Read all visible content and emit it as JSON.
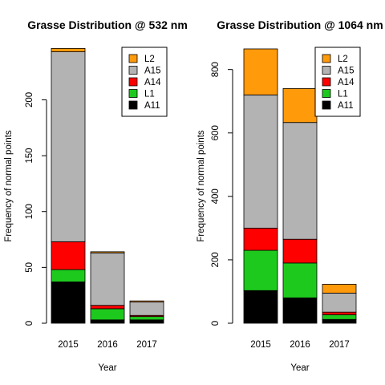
{
  "chart_data": [
    {
      "type": "bar",
      "stacked": true,
      "title": "Grasse Distribution @ 532 nm",
      "xlabel": "Year",
      "ylabel": "Frequency of normal points",
      "categories": [
        "2015",
        "2016",
        "2017"
      ],
      "ylim": [
        0,
        247
      ],
      "yticks": [
        0,
        50,
        100,
        150,
        200
      ],
      "legend_position": "top-right",
      "series": [
        {
          "name": "A11",
          "color": "#000000",
          "values": [
            37,
            3,
            3
          ]
        },
        {
          "name": "L1",
          "color": "#1ec91e",
          "values": [
            11,
            10,
            3
          ]
        },
        {
          "name": "A14",
          "color": "#ff0000",
          "values": [
            25,
            3,
            1
          ]
        },
        {
          "name": "A15",
          "color": "#b3b3b3",
          "values": [
            170,
            47,
            12
          ]
        },
        {
          "name": "L2",
          "color": "#ff9a0a",
          "values": [
            3,
            1,
            1
          ]
        }
      ]
    },
    {
      "type": "bar",
      "stacked": true,
      "title": "Grasse Distribution @ 1064 nm",
      "xlabel": "Year",
      "ylabel": "Frequency of normal points",
      "categories": [
        "2015",
        "2016",
        "2017"
      ],
      "ylim": [
        0,
        870
      ],
      "yticks": [
        0,
        200,
        400,
        600,
        800
      ],
      "legend_position": "top-right",
      "series": [
        {
          "name": "A11",
          "color": "#000000",
          "values": [
            103,
            80,
            12
          ]
        },
        {
          "name": "L1",
          "color": "#1ec91e",
          "values": [
            127,
            110,
            15
          ]
        },
        {
          "name": "A14",
          "color": "#ff0000",
          "values": [
            70,
            75,
            8
          ]
        },
        {
          "name": "A15",
          "color": "#b3b3b3",
          "values": [
            420,
            368,
            60
          ]
        },
        {
          "name": "L2",
          "color": "#ff9a0a",
          "values": [
            145,
            107,
            28
          ]
        }
      ]
    }
  ]
}
